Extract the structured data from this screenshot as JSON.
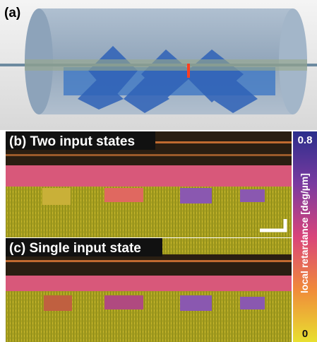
{
  "panels": [
    {
      "label": "(a)"
    },
    {
      "label": "(b) Two input states"
    },
    {
      "label": "(c) Single input state"
    }
  ],
  "colorbar": {
    "label": "local retardance [deg/µm]",
    "max": 0.8,
    "min": 0
  }
}
